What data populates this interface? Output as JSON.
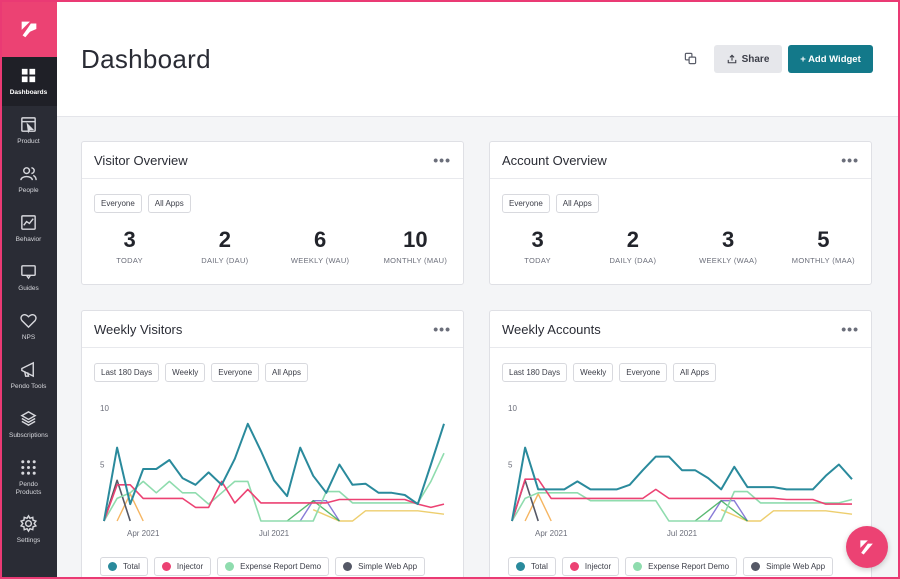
{
  "sidebar": {
    "items": [
      {
        "label": "Dashboards",
        "icon": "grid-icon"
      },
      {
        "label": "Product",
        "icon": "product-icon"
      },
      {
        "label": "People",
        "icon": "people-icon"
      },
      {
        "label": "Behavior",
        "icon": "chart-icon"
      },
      {
        "label": "Guides",
        "icon": "message-icon"
      },
      {
        "label": "NPS",
        "icon": "heart-icon"
      },
      {
        "label": "Pendo Tools",
        "icon": "megaphone-icon"
      },
      {
        "label": "Subscriptions",
        "icon": "layers-icon"
      },
      {
        "label": "Pendo Products",
        "icon": "apps-grid-icon"
      },
      {
        "label": "Settings",
        "icon": "gear-icon"
      }
    ]
  },
  "header": {
    "title": "Dashboard",
    "share_label": "Share",
    "add_widget_label": "+ Add Widget"
  },
  "visitor_overview": {
    "title": "Visitor Overview",
    "filters": [
      "Everyone",
      "All Apps"
    ],
    "stats": [
      {
        "value": "3",
        "label": "TODAY"
      },
      {
        "value": "2",
        "label": "DAILY (DAU)"
      },
      {
        "value": "6",
        "label": "WEEKLY (WAU)"
      },
      {
        "value": "10",
        "label": "MONTHLY (MAU)"
      }
    ]
  },
  "account_overview": {
    "title": "Account Overview",
    "filters": [
      "Everyone",
      "All Apps"
    ],
    "stats": [
      {
        "value": "3",
        "label": "TODAY"
      },
      {
        "value": "2",
        "label": "DAILY (DAA)"
      },
      {
        "value": "3",
        "label": "WEEKLY (WAA)"
      },
      {
        "value": "5",
        "label": "MONTHLY (MAA)"
      }
    ]
  },
  "weekly_visitors": {
    "title": "Weekly Visitors",
    "filters": [
      "Last 180 Days",
      "Weekly",
      "Everyone",
      "All Apps"
    ]
  },
  "weekly_accounts": {
    "title": "Weekly Accounts",
    "filters": [
      "Last 180 Days",
      "Weekly",
      "Everyone",
      "All Apps"
    ]
  },
  "legend": [
    {
      "name": "Total",
      "color": "#2a8a9c"
    },
    {
      "name": "Injector",
      "color": "#ec4273"
    },
    {
      "name": "Expense Report Demo",
      "color": "#8fdcae"
    },
    {
      "name": "Simple Web App",
      "color": "#555866"
    }
  ],
  "colors": {
    "accent": "#13798a",
    "brand": "#ec4273",
    "sidebar": "#2a2c35"
  },
  "chart_data": [
    {
      "type": "line",
      "title": "Weekly Visitors",
      "x_tick_labels": [
        "Apr 2021",
        "Jul 2021"
      ],
      "ylim": [
        0,
        10
      ],
      "y_ticks": [
        5,
        10
      ],
      "series": [
        {
          "name": "Total",
          "color": "#2a8a9c",
          "values": [
            0,
            6.5,
            1.5,
            4.6,
            4.6,
            5.4,
            3.8,
            3.2,
            4.3,
            3.2,
            5.5,
            8.6,
            6.2,
            3.6,
            2.2,
            6.5,
            4,
            2.5,
            5,
            3.2,
            3.3,
            2.5,
            2.5,
            2.3,
            1.5,
            5,
            8.6
          ]
        },
        {
          "name": "Injector",
          "color": "#ec4273",
          "values": [
            0,
            3.2,
            3.2,
            2,
            2,
            2,
            2,
            1.2,
            1.2,
            3.5,
            1.6,
            2.8,
            1.6,
            1.6,
            1.6,
            1.6,
            1.6,
            1.6,
            1.9,
            1.9,
            1.9,
            1.9,
            1.9,
            1.9,
            1.5,
            1.2,
            1.5
          ]
        },
        {
          "name": "Expense Report Demo",
          "color": "#8fdcae",
          "values": [
            0,
            2,
            2.5,
            3.5,
            2.5,
            3.5,
            2.5,
            2.5,
            1.5,
            2.5,
            3.5,
            3.5,
            0,
            0,
            0,
            0,
            0,
            2.6,
            2.6,
            1.6,
            1.6,
            1.6,
            1.6,
            1.6,
            1.6,
            3.5,
            6
          ]
        },
        {
          "name": "Simple Web App",
          "color": "#555866",
          "values": [
            0,
            3.6,
            0,
            null,
            null,
            null,
            null,
            null,
            null,
            null,
            null,
            null,
            null,
            null,
            null,
            null,
            null,
            null,
            null,
            null,
            null,
            null,
            null,
            null,
            null,
            null,
            null
          ]
        }
      ]
    },
    {
      "type": "line",
      "title": "Weekly Accounts",
      "x_tick_labels": [
        "Apr 2021",
        "Jul 2021"
      ],
      "ylim": [
        0,
        10
      ],
      "y_ticks": [
        5,
        10
      ],
      "series": [
        {
          "name": "Total",
          "color": "#2a8a9c",
          "values": [
            0,
            6.5,
            2.8,
            2.8,
            2.8,
            3.5,
            2.8,
            2.8,
            2.8,
            3.2,
            4.5,
            5.7,
            5.7,
            4.5,
            4.5,
            3.8,
            2.8,
            4.8,
            3,
            3,
            3,
            2.8,
            2.8,
            2.8,
            4,
            5,
            3.7
          ]
        },
        {
          "name": "Injector",
          "color": "#ec4273",
          "values": [
            0,
            3.7,
            3.7,
            2,
            2,
            2,
            2,
            2,
            2,
            2,
            2,
            2.8,
            2,
            2,
            2,
            2,
            2,
            2,
            2,
            2,
            2,
            1.9,
            1.9,
            1.9,
            1.5,
            1.5,
            1.5
          ]
        },
        {
          "name": "Expense Report Demo",
          "color": "#8fdcae",
          "values": [
            0,
            2,
            2.5,
            2.5,
            2.5,
            2.5,
            1.8,
            1.8,
            1.8,
            1.8,
            1.8,
            1.8,
            0,
            0,
            0,
            0,
            0,
            2.6,
            2.6,
            1.6,
            1.6,
            1.6,
            1.6,
            1.6,
            1.6,
            1.6,
            1.9
          ]
        },
        {
          "name": "Simple Web App",
          "color": "#555866",
          "values": [
            0,
            3.6,
            0,
            null,
            null,
            null,
            null,
            null,
            null,
            null,
            null,
            null,
            null,
            null,
            null,
            null,
            null,
            null,
            null,
            null,
            null,
            null,
            null,
            null,
            null,
            null,
            null
          ]
        }
      ]
    }
  ]
}
